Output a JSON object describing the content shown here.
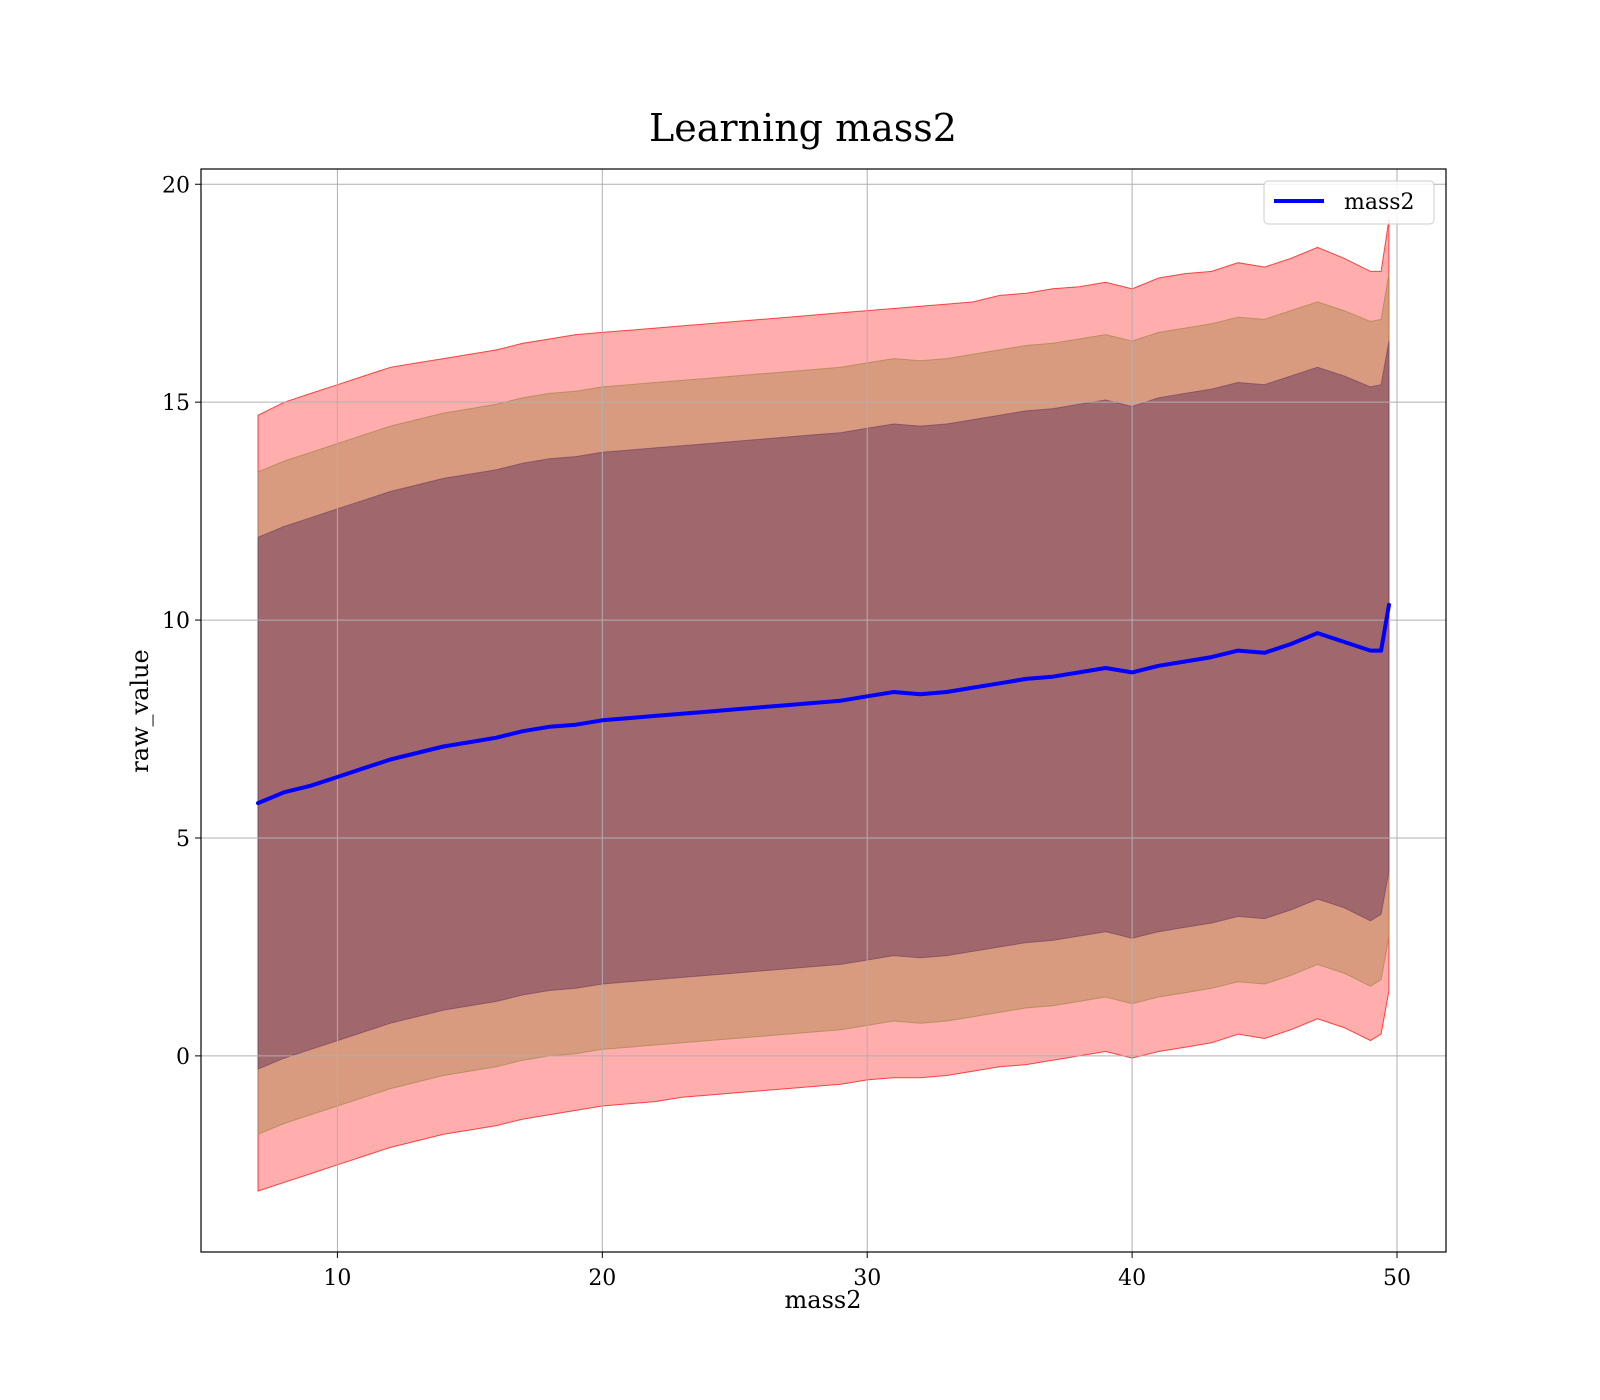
{
  "chart_data": {
    "type": "line",
    "title": "Learning mass2",
    "xlabel": "mass2",
    "ylabel": "raw_value",
    "xlim": [
      4.85,
      51.85
    ],
    "ylim": [
      -4.5,
      20.35
    ],
    "xticks": [
      10,
      20,
      30,
      40,
      50
    ],
    "yticks": [
      0,
      5,
      10,
      15,
      20
    ],
    "xtick_labels": [
      "10",
      "20",
      "30",
      "40",
      "50"
    ],
    "ytick_labels": [
      "0",
      "5",
      "10",
      "15",
      "20"
    ],
    "grid": true,
    "legend": {
      "placement": "top-right",
      "entries": [
        "mass2"
      ]
    },
    "series": [
      {
        "name": "mass2",
        "color": "#0000ff",
        "x": [
          7,
          8,
          9,
          10,
          11,
          12,
          13,
          14,
          15,
          16,
          17,
          18,
          19,
          20,
          21,
          22,
          23,
          24,
          25,
          26,
          27,
          28,
          29,
          30,
          31,
          32,
          33,
          34,
          35,
          36,
          37,
          38,
          39,
          40,
          41,
          42,
          43,
          44,
          45,
          46,
          47,
          48,
          49,
          49.4,
          49.7
        ],
        "y": [
          5.8,
          6.05,
          6.2,
          6.4,
          6.6,
          6.8,
          6.95,
          7.1,
          7.2,
          7.3,
          7.45,
          7.55,
          7.6,
          7.7,
          7.75,
          7.8,
          7.85,
          7.9,
          7.95,
          8.0,
          8.05,
          8.1,
          8.15,
          8.25,
          8.35,
          8.3,
          8.35,
          8.45,
          8.55,
          8.65,
          8.7,
          8.8,
          8.9,
          8.8,
          8.95,
          9.05,
          9.15,
          9.3,
          9.25,
          9.45,
          9.7,
          9.5,
          9.3,
          9.3,
          10.35
        ]
      }
    ],
    "bands": [
      {
        "level": "outer",
        "color": "#ff0000",
        "opacity": 0.32,
        "x": [
          7,
          8,
          9,
          10,
          11,
          12,
          13,
          14,
          15,
          16,
          17,
          18,
          19,
          20,
          21,
          22,
          23,
          24,
          25,
          26,
          27,
          28,
          29,
          30,
          31,
          32,
          33,
          34,
          35,
          36,
          37,
          38,
          39,
          40,
          41,
          42,
          43,
          44,
          45,
          46,
          47,
          48,
          49,
          49.4,
          49.7
        ],
        "upper": [
          14.7,
          15.0,
          15.2,
          15.4,
          15.6,
          15.8,
          15.9,
          16.0,
          16.1,
          16.2,
          16.35,
          16.45,
          16.55,
          16.6,
          16.65,
          16.7,
          16.75,
          16.8,
          16.85,
          16.9,
          16.95,
          17.0,
          17.05,
          17.1,
          17.15,
          17.2,
          17.25,
          17.3,
          17.45,
          17.5,
          17.6,
          17.65,
          17.75,
          17.6,
          17.85,
          17.95,
          18.0,
          18.2,
          18.1,
          18.3,
          18.55,
          18.3,
          18.0,
          18.0,
          19.2
        ],
        "lower": [
          -3.1,
          -2.9,
          -2.7,
          -2.5,
          -2.3,
          -2.1,
          -1.95,
          -1.8,
          -1.7,
          -1.6,
          -1.45,
          -1.35,
          -1.25,
          -1.15,
          -1.1,
          -1.05,
          -0.95,
          -0.9,
          -0.85,
          -0.8,
          -0.75,
          -0.7,
          -0.65,
          -0.55,
          -0.5,
          -0.5,
          -0.45,
          -0.35,
          -0.25,
          -0.2,
          -0.1,
          0.0,
          0.1,
          -0.05,
          0.1,
          0.2,
          0.3,
          0.5,
          0.4,
          0.6,
          0.85,
          0.65,
          0.35,
          0.5,
          1.5
        ]
      },
      {
        "level": "middle",
        "color": "#a8844a",
        "opacity": 0.45,
        "x": [
          7,
          8,
          9,
          10,
          11,
          12,
          13,
          14,
          15,
          16,
          17,
          18,
          19,
          20,
          21,
          22,
          23,
          24,
          25,
          26,
          27,
          28,
          29,
          30,
          31,
          32,
          33,
          34,
          35,
          36,
          37,
          38,
          39,
          40,
          41,
          42,
          43,
          44,
          45,
          46,
          47,
          48,
          49,
          49.4,
          49.7
        ],
        "upper": [
          13.4,
          13.65,
          13.85,
          14.05,
          14.25,
          14.45,
          14.6,
          14.75,
          14.85,
          14.95,
          15.1,
          15.2,
          15.25,
          15.35,
          15.4,
          15.45,
          15.5,
          15.55,
          15.6,
          15.65,
          15.7,
          15.75,
          15.8,
          15.9,
          16.0,
          15.95,
          16.0,
          16.1,
          16.2,
          16.3,
          16.35,
          16.45,
          16.55,
          16.4,
          16.6,
          16.7,
          16.8,
          16.95,
          16.9,
          17.1,
          17.3,
          17.1,
          16.85,
          16.9,
          17.95
        ],
        "lower": [
          -1.8,
          -1.55,
          -1.35,
          -1.15,
          -0.95,
          -0.75,
          -0.6,
          -0.45,
          -0.35,
          -0.25,
          -0.1,
          0.0,
          0.05,
          0.15,
          0.2,
          0.25,
          0.3,
          0.35,
          0.4,
          0.45,
          0.5,
          0.55,
          0.6,
          0.7,
          0.8,
          0.75,
          0.8,
          0.9,
          1.0,
          1.1,
          1.15,
          1.25,
          1.35,
          1.2,
          1.35,
          1.45,
          1.55,
          1.7,
          1.65,
          1.85,
          2.1,
          1.9,
          1.6,
          1.75,
          2.75
        ]
      },
      {
        "level": "inner",
        "color": "#7b4560",
        "opacity": 0.6,
        "x": [
          7,
          8,
          9,
          10,
          11,
          12,
          13,
          14,
          15,
          16,
          17,
          18,
          19,
          20,
          21,
          22,
          23,
          24,
          25,
          26,
          27,
          28,
          29,
          30,
          31,
          32,
          33,
          34,
          35,
          36,
          37,
          38,
          39,
          40,
          41,
          42,
          43,
          44,
          45,
          46,
          47,
          48,
          49,
          49.4,
          49.7
        ],
        "upper": [
          11.9,
          12.15,
          12.35,
          12.55,
          12.75,
          12.95,
          13.1,
          13.25,
          13.35,
          13.45,
          13.6,
          13.7,
          13.75,
          13.85,
          13.9,
          13.95,
          14.0,
          14.05,
          14.1,
          14.15,
          14.2,
          14.25,
          14.3,
          14.4,
          14.5,
          14.45,
          14.5,
          14.6,
          14.7,
          14.8,
          14.85,
          14.95,
          15.05,
          14.9,
          15.1,
          15.2,
          15.3,
          15.45,
          15.4,
          15.6,
          15.8,
          15.6,
          15.35,
          15.4,
          16.4
        ],
        "lower": [
          -0.3,
          -0.05,
          0.15,
          0.35,
          0.55,
          0.75,
          0.9,
          1.05,
          1.15,
          1.25,
          1.4,
          1.5,
          1.55,
          1.65,
          1.7,
          1.75,
          1.8,
          1.85,
          1.9,
          1.95,
          2.0,
          2.05,
          2.1,
          2.2,
          2.3,
          2.25,
          2.3,
          2.4,
          2.5,
          2.6,
          2.65,
          2.75,
          2.85,
          2.7,
          2.85,
          2.95,
          3.05,
          3.2,
          3.15,
          3.35,
          3.6,
          3.4,
          3.1,
          3.25,
          4.25
        ]
      }
    ]
  }
}
